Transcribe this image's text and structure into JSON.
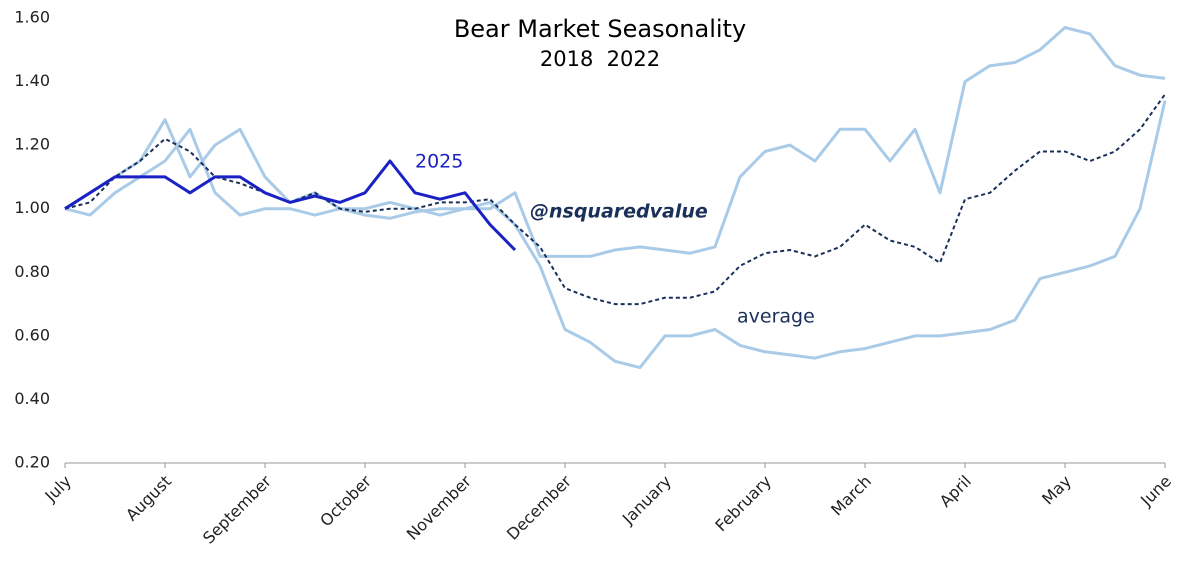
{
  "chart_data": {
    "type": "line",
    "title": "Bear Market Seasonality",
    "subtitle": "2018  2022",
    "annotations": [
      "2025",
      "@nsquaredvalue",
      "average"
    ],
    "categories": [
      "July",
      null,
      null,
      null,
      "August",
      null,
      null,
      null,
      "September",
      null,
      null,
      null,
      "October",
      null,
      null,
      null,
      "November",
      null,
      null,
      null,
      "December",
      null,
      null,
      null,
      "January",
      null,
      null,
      null,
      "February",
      null,
      null,
      null,
      "March",
      null,
      null,
      null,
      "April",
      null,
      null,
      null,
      "May",
      null,
      null,
      null,
      "June"
    ],
    "series": [
      {
        "name": "2022",
        "color": "#a9cbe8",
        "dash": false,
        "width": 3,
        "values": [
          1.0,
          1.05,
          1.1,
          1.15,
          1.28,
          1.1,
          1.2,
          1.25,
          1.1,
          1.02,
          1.05,
          1.0,
          1.0,
          1.02,
          1.0,
          0.98,
          1.0,
          1.0,
          1.05,
          0.85,
          0.85,
          0.85,
          0.87,
          0.88,
          0.87,
          0.86,
          0.88,
          1.1,
          1.18,
          1.2,
          1.15,
          1.25,
          1.25,
          1.15,
          1.25,
          1.05,
          1.4,
          1.45,
          1.46,
          1.5,
          1.57,
          1.55,
          1.45,
          1.42,
          1.41
        ]
      },
      {
        "name": "2018",
        "color": "#a9cbe8",
        "dash": false,
        "width": 3,
        "values": [
          1.0,
          0.98,
          1.05,
          1.1,
          1.15,
          1.25,
          1.05,
          0.98,
          1.0,
          1.0,
          0.98,
          1.0,
          0.98,
          0.97,
          0.99,
          1.0,
          1.0,
          1.02,
          0.95,
          0.82,
          0.62,
          0.58,
          0.52,
          0.5,
          0.6,
          0.6,
          0.62,
          0.57,
          0.55,
          0.54,
          0.53,
          0.55,
          0.56,
          0.58,
          0.6,
          0.6,
          0.61,
          0.62,
          0.65,
          0.78,
          0.8,
          0.82,
          0.85,
          1.0,
          1.34
        ]
      },
      {
        "name": "average",
        "color": "#1a2f5a",
        "dash": true,
        "width": 2,
        "values": [
          1.0,
          1.02,
          1.1,
          1.15,
          1.22,
          1.18,
          1.1,
          1.08,
          1.05,
          1.02,
          1.05,
          1.0,
          0.99,
          1.0,
          1.0,
          1.02,
          1.02,
          1.03,
          0.95,
          0.88,
          0.75,
          0.72,
          0.7,
          0.7,
          0.72,
          0.72,
          0.74,
          0.82,
          0.86,
          0.87,
          0.85,
          0.88,
          0.95,
          0.9,
          0.88,
          0.83,
          1.03,
          1.05,
          1.12,
          1.18,
          1.18,
          1.15,
          1.18,
          1.25,
          1.36
        ]
      },
      {
        "name": "2025",
        "color": "#1b22c4",
        "dash": false,
        "width": 3,
        "values": [
          1.0,
          1.05,
          1.1,
          1.1,
          1.1,
          1.05,
          1.1,
          1.1,
          1.05,
          1.02,
          1.04,
          1.02,
          1.05,
          1.15,
          1.05,
          1.03,
          1.05,
          0.95,
          0.87,
          null,
          null,
          null,
          null,
          null,
          null,
          null,
          null,
          null,
          null,
          null,
          null,
          null,
          null,
          null,
          null,
          null,
          null,
          null,
          null,
          null,
          null,
          null,
          null,
          null,
          null
        ]
      }
    ],
    "ylim": [
      0.2,
      1.6
    ],
    "yticks": [
      {
        "value": 0.2,
        "label": "0.20"
      },
      {
        "value": 0.4,
        "label": "0.40"
      },
      {
        "value": 0.6,
        "label": "0.60"
      },
      {
        "value": 0.8,
        "label": "0.80"
      },
      {
        "value": 1.0,
        "label": "1.00"
      },
      {
        "value": 1.2,
        "label": "1.20"
      },
      {
        "value": 1.4,
        "label": "1.40"
      },
      {
        "value": 1.6,
        "label": "1.60"
      }
    ],
    "grid": false
  }
}
